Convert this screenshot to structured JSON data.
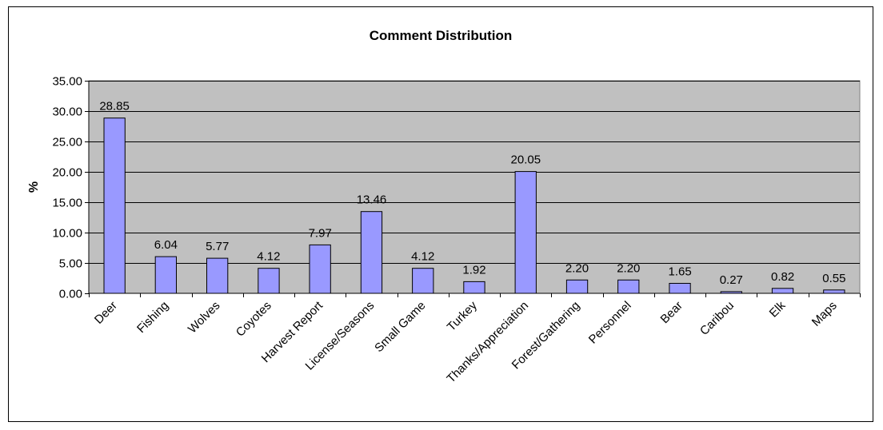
{
  "chart_data": {
    "type": "bar",
    "title": "Comment Distribution",
    "xlabel": "",
    "ylabel": "%",
    "ylim": [
      0,
      35
    ],
    "yticks": [
      "0.00",
      "5.00",
      "10.00",
      "15.00",
      "20.00",
      "25.00",
      "30.00",
      "35.00"
    ],
    "categories": [
      "Deer",
      "Fishing",
      "Wolves",
      "Coyotes",
      "Harvest Report",
      "License/Seasons",
      "Small Game",
      "Turkey",
      "Thanks/Appreciation",
      "Forest/Gathering",
      "Personnel",
      "Bear",
      "Caribou",
      "Elk",
      "Maps"
    ],
    "values": [
      28.85,
      6.04,
      5.77,
      4.12,
      7.97,
      13.46,
      4.12,
      1.92,
      20.05,
      2.2,
      2.2,
      1.65,
      0.27,
      0.82,
      0.55
    ],
    "data_labels": [
      "28.85",
      "6.04",
      "5.77",
      "4.12",
      "7.97",
      "13.46",
      "4.12",
      "1.92",
      "20.05",
      "2.20",
      "2.20",
      "1.65",
      "0.27",
      "0.82",
      "0.55"
    ],
    "grid": true,
    "legend": "none",
    "colors": {
      "bar": "#9999ff",
      "plot_background": "#c0c0c0",
      "gridline": "#000000"
    }
  }
}
